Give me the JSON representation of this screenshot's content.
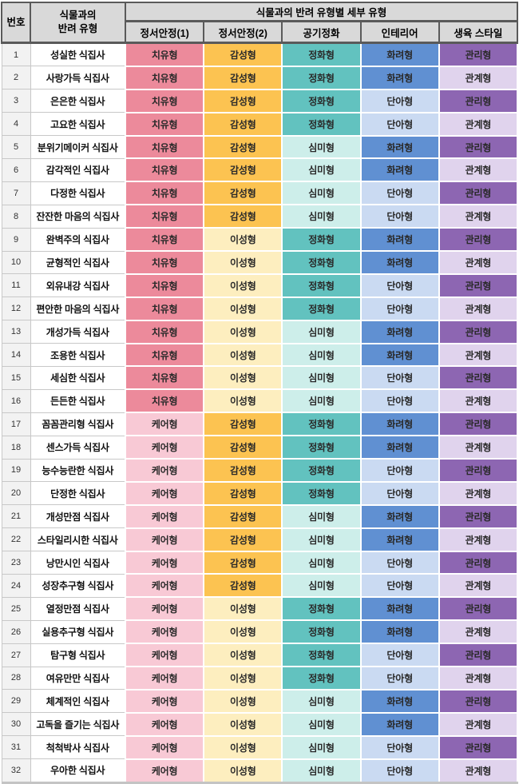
{
  "table": {
    "header": {
      "no": "번호",
      "companion_type": "식물과의\n반려 유형",
      "group": "식물과의 반려 유형별 세부 유형",
      "subcolumns": [
        "정서안정(1)",
        "정서안정(2)",
        "공기정화",
        "인테리어",
        "생육 스타일"
      ]
    },
    "type_colors": {
      "치유형": "#ec8a9b",
      "케어형": "#f8c9d5",
      "감성형": "#fcc351",
      "이성형": "#fdeebf",
      "정화형": "#62c2bf",
      "심미형": "#cdeeea",
      "화려형": "#6090d2",
      "단아형": "#cadaf2",
      "관리형": "#8d66b2",
      "관계형": "#e0d3ed"
    },
    "rows": [
      {
        "no": "1",
        "name": "성실한 식집사",
        "types": [
          "치유형",
          "감성형",
          "정화형",
          "화려형",
          "관리형"
        ]
      },
      {
        "no": "2",
        "name": "사랑가득 식집사",
        "types": [
          "치유형",
          "감성형",
          "정화형",
          "화려형",
          "관계형"
        ]
      },
      {
        "no": "3",
        "name": "은은한 식집사",
        "types": [
          "치유형",
          "감성형",
          "정화형",
          "단아형",
          "관리형"
        ]
      },
      {
        "no": "4",
        "name": "고요한 식집사",
        "types": [
          "치유형",
          "감성형",
          "정화형",
          "단아형",
          "관계형"
        ]
      },
      {
        "no": "5",
        "name": "분위기메이커 식집사",
        "types": [
          "치유형",
          "감성형",
          "심미형",
          "화려형",
          "관리형"
        ]
      },
      {
        "no": "6",
        "name": "감각적인 식집사",
        "types": [
          "치유형",
          "감성형",
          "심미형",
          "화려형",
          "관계형"
        ]
      },
      {
        "no": "7",
        "name": "다정한 식집사",
        "types": [
          "치유형",
          "감성형",
          "심미형",
          "단아형",
          "관리형"
        ]
      },
      {
        "no": "8",
        "name": "잔잔한 마음의 식집사",
        "types": [
          "치유형",
          "감성형",
          "심미형",
          "단아형",
          "관계형"
        ]
      },
      {
        "no": "9",
        "name": "완벽주의 식집사",
        "types": [
          "치유형",
          "이성형",
          "정화형",
          "화려형",
          "관리형"
        ]
      },
      {
        "no": "10",
        "name": "균형적인 식집사",
        "types": [
          "치유형",
          "이성형",
          "정화형",
          "화려형",
          "관계형"
        ]
      },
      {
        "no": "11",
        "name": "외유내강 식집사",
        "types": [
          "치유형",
          "이성형",
          "정화형",
          "단아형",
          "관리형"
        ]
      },
      {
        "no": "12",
        "name": "편안한 마음의 식집사",
        "types": [
          "치유형",
          "이성형",
          "정화형",
          "단아형",
          "관계형"
        ]
      },
      {
        "no": "13",
        "name": "개성가득 식집사",
        "types": [
          "치유형",
          "이성형",
          "심미형",
          "화려형",
          "관리형"
        ]
      },
      {
        "no": "14",
        "name": "조용한 식집사",
        "types": [
          "치유형",
          "이성형",
          "심미형",
          "화려형",
          "관계형"
        ]
      },
      {
        "no": "15",
        "name": "세심한 식집사",
        "types": [
          "치유형",
          "이성형",
          "심미형",
          "단아형",
          "관리형"
        ]
      },
      {
        "no": "16",
        "name": "든든한 식집사",
        "types": [
          "치유형",
          "이성형",
          "심미형",
          "단아형",
          "관계형"
        ]
      },
      {
        "no": "17",
        "name": "꼼꼼관리형 식집사",
        "types": [
          "케어형",
          "감성형",
          "정화형",
          "화려형",
          "관리형"
        ]
      },
      {
        "no": "18",
        "name": "센스가득 식집사",
        "types": [
          "케어형",
          "감성형",
          "정화형",
          "화려형",
          "관계형"
        ]
      },
      {
        "no": "19",
        "name": "능수능란한 식집사",
        "types": [
          "케어형",
          "감성형",
          "정화형",
          "단아형",
          "관리형"
        ]
      },
      {
        "no": "20",
        "name": "단정한 식집사",
        "types": [
          "케어형",
          "감성형",
          "정화형",
          "단아형",
          "관계형"
        ]
      },
      {
        "no": "21",
        "name": "개성만점 식집사",
        "types": [
          "케어형",
          "감성형",
          "심미형",
          "화려형",
          "관리형"
        ]
      },
      {
        "no": "22",
        "name": "스타일리시한 식집사",
        "types": [
          "케어형",
          "감성형",
          "심미형",
          "화려형",
          "관계형"
        ]
      },
      {
        "no": "23",
        "name": "낭만시인 식집사",
        "types": [
          "케어형",
          "감성형",
          "심미형",
          "단아형",
          "관리형"
        ]
      },
      {
        "no": "24",
        "name": "성장추구형 식집사",
        "types": [
          "케어형",
          "감성형",
          "심미형",
          "단아형",
          "관계형"
        ]
      },
      {
        "no": "25",
        "name": "열정만점 식집사",
        "types": [
          "케어형",
          "이성형",
          "정화형",
          "화려형",
          "관리형"
        ]
      },
      {
        "no": "26",
        "name": "실용추구형 식집사",
        "types": [
          "케어형",
          "이성형",
          "정화형",
          "화려형",
          "관계형"
        ]
      },
      {
        "no": "27",
        "name": "탐구형 식집사",
        "types": [
          "케어형",
          "이성형",
          "정화형",
          "단아형",
          "관리형"
        ]
      },
      {
        "no": "28",
        "name": "여유만만 식집사",
        "types": [
          "케어형",
          "이성형",
          "정화형",
          "단아형",
          "관계형"
        ]
      },
      {
        "no": "29",
        "name": "체계적인 식집사",
        "types": [
          "케어형",
          "이성형",
          "심미형",
          "화려형",
          "관리형"
        ]
      },
      {
        "no": "30",
        "name": "고독을 즐기는 식집사",
        "types": [
          "케어형",
          "이성형",
          "심미형",
          "화려형",
          "관계형"
        ]
      },
      {
        "no": "31",
        "name": "척척박사 식집사",
        "types": [
          "케어형",
          "이성형",
          "심미형",
          "단아형",
          "관리형"
        ]
      },
      {
        "no": "32",
        "name": "우아한 식집사",
        "types": [
          "케어형",
          "이성형",
          "심미형",
          "단아형",
          "관계형"
        ]
      }
    ]
  }
}
